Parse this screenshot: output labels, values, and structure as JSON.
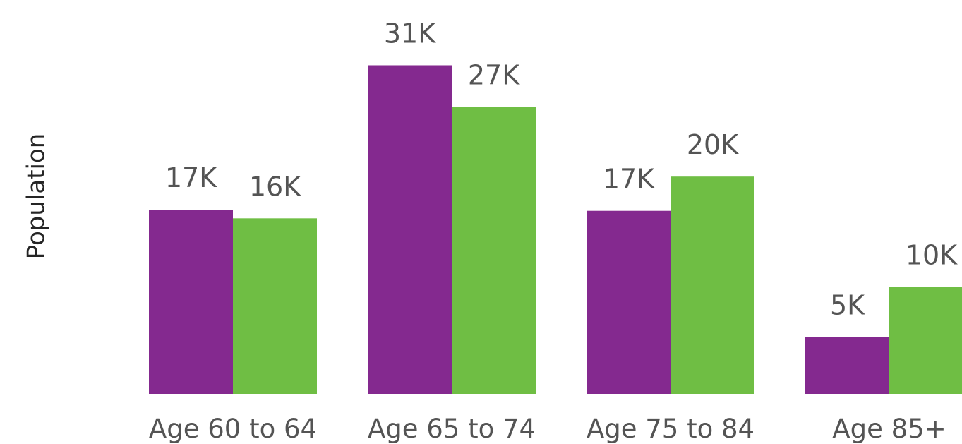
{
  "chart_data": {
    "type": "bar",
    "categories": [
      "Age 60 to 64",
      "Age 65 to 74",
      "Age 75 to 84",
      "Age 85+"
    ],
    "series": [
      {
        "values": [
          17200,
          30700,
          17100,
          5300
        ],
        "labels": [
          "17K",
          "31K",
          "17K",
          "5K"
        ],
        "color": "#84298f"
      },
      {
        "values": [
          16400,
          26800,
          20300,
          10000
        ],
        "labels": [
          "16K",
          "27K",
          "20K",
          "10K"
        ],
        "color": "#6fbe44"
      }
    ],
    "title": "",
    "xlabel": "",
    "ylabel": "Population",
    "ylim": [
      0,
      36800
    ],
    "grid": false,
    "legend": "none"
  }
}
